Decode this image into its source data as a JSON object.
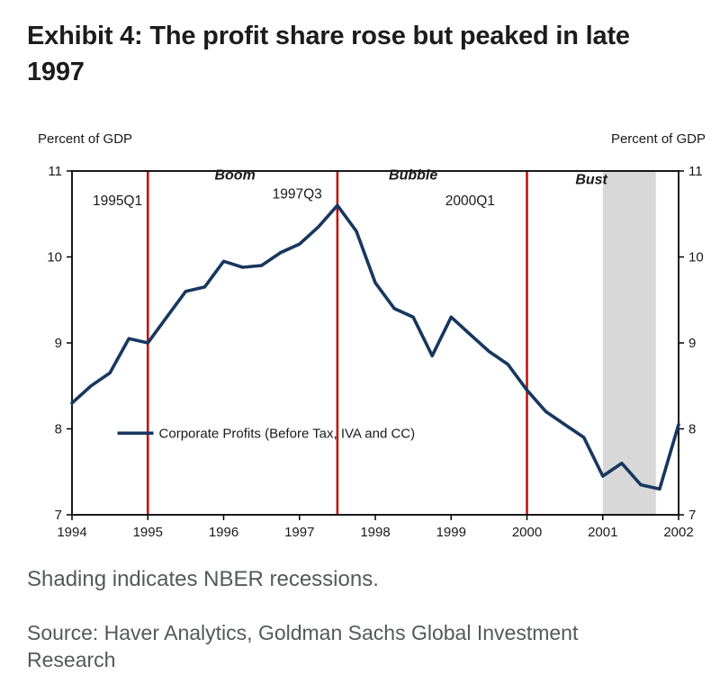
{
  "title": "Exhibit 4: The profit share rose but peaked in late 1997",
  "note": "Shading indicates NBER recessions.",
  "source": "Source: Haver Analytics, Goldman Sachs Global Investment Research",
  "chart_data": {
    "type": "line",
    "title": "Exhibit 4: The profit share rose but peaked in late 1997",
    "xlabel": "",
    "ylabel_left": "Percent of GDP",
    "ylabel_right": "Percent of GDP",
    "xlim": [
      1994,
      2002
    ],
    "ylim": [
      7,
      11
    ],
    "xticks": [
      1994,
      1995,
      1996,
      1997,
      1998,
      1999,
      2000,
      2001,
      2002
    ],
    "yticks": [
      7,
      8,
      9,
      10,
      11
    ],
    "grid": false,
    "line_color": "#17375e",
    "frame_color": "#000000",
    "x": [
      1994,
      1994.25,
      1994.5,
      1994.75,
      1995,
      1995.25,
      1995.5,
      1995.75,
      1996,
      1996.25,
      1996.5,
      1996.75,
      1997,
      1997.25,
      1997.5,
      1997.75,
      1998,
      1998.25,
      1998.5,
      1998.75,
      1999,
      1999.25,
      1999.5,
      1999.75,
      2000,
      2000.25,
      2000.5,
      2000.75,
      2001,
      2001.25,
      2001.5,
      2001.75,
      2002
    ],
    "series": [
      {
        "name": "Corporate Profits (Before Tax, IVA and CC)",
        "values": [
          8.3,
          8.5,
          8.65,
          9.05,
          9.0,
          9.3,
          9.6,
          9.65,
          9.95,
          9.88,
          9.9,
          10.05,
          10.15,
          10.35,
          10.6,
          10.3,
          9.7,
          9.4,
          9.3,
          8.85,
          9.3,
          9.1,
          8.9,
          8.75,
          8.45,
          8.2,
          8.05,
          7.9,
          7.45,
          7.6,
          7.35,
          7.3,
          8.05
        ]
      }
    ],
    "vlines": [
      {
        "x": 1995,
        "color": "#c01414",
        "label": "1995Q1"
      },
      {
        "x": 1997.5,
        "color": "#c01414",
        "label": "1997Q3"
      },
      {
        "x": 2000,
        "color": "#c01414",
        "label": "2000Q1"
      }
    ],
    "shaded_region": {
      "x0": 2001,
      "x1": 2001.7,
      "color": "#d8d8d8",
      "meaning": "NBER recession"
    },
    "annotations": [
      {
        "text": "1995Q1",
        "x": 1994.6,
        "y": 10.6,
        "style": "plain"
      },
      {
        "text": "Boom",
        "x": 1996.15,
        "y": 10.9,
        "style": "bold-italic"
      },
      {
        "text": "1997Q3",
        "x": 1996.97,
        "y": 10.68,
        "style": "plain"
      },
      {
        "text": "Bubble",
        "x": 1998.5,
        "y": 10.9,
        "style": "bold-italic"
      },
      {
        "text": "2000Q1",
        "x": 1999.25,
        "y": 10.6,
        "style": "plain"
      },
      {
        "text": "Bust",
        "x": 2000.85,
        "y": 10.85,
        "style": "bold-italic"
      }
    ],
    "legend": {
      "x": 1994.6,
      "y": 7.95,
      "label": "Corporate Profits (Before Tax, IVA and CC)",
      "position": "inside-left"
    }
  }
}
